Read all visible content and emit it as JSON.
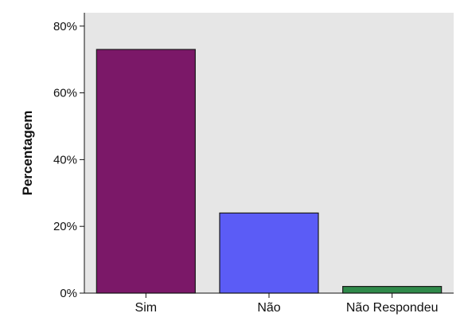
{
  "chart_data": {
    "type": "bar",
    "ylabel": "Percentagem",
    "xlabel": "",
    "categories": [
      "Sim",
      "Não",
      "Não Respondeu"
    ],
    "values": [
      73,
      24,
      2
    ],
    "ylim": [
      0,
      84
    ],
    "yticks": [
      0,
      20,
      40,
      60,
      80
    ],
    "ytick_labels": [
      "0%",
      "20%",
      "40%",
      "60%",
      "80%"
    ],
    "colors": [
      "#7b1868",
      "#5b5cf6",
      "#2f8a4a"
    ],
    "plot_background": "#e6e6e6",
    "grid": false,
    "legend": "none"
  }
}
